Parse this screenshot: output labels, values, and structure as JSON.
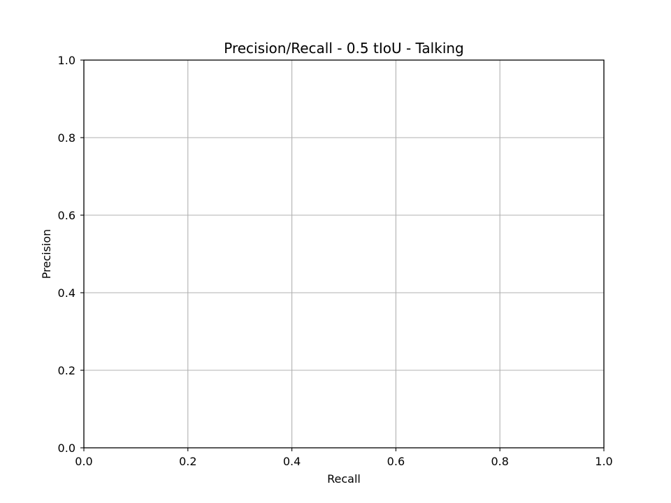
{
  "chart_data": {
    "type": "line",
    "title": "Precision/Recall - 0.5 tIoU - Talking",
    "xlabel": "Recall",
    "ylabel": "Precision",
    "xlim": [
      0.0,
      1.0
    ],
    "ylim": [
      0.0,
      1.0
    ],
    "xticks": [
      "0.0",
      "0.2",
      "0.4",
      "0.6",
      "0.8",
      "1.0"
    ],
    "yticks": [
      "0.0",
      "0.2",
      "0.4",
      "0.6",
      "0.8",
      "1.0"
    ],
    "grid": true,
    "series": []
  },
  "colors": {
    "grid": "#b0b0b0",
    "axis": "#000000",
    "background": "#ffffff"
  }
}
